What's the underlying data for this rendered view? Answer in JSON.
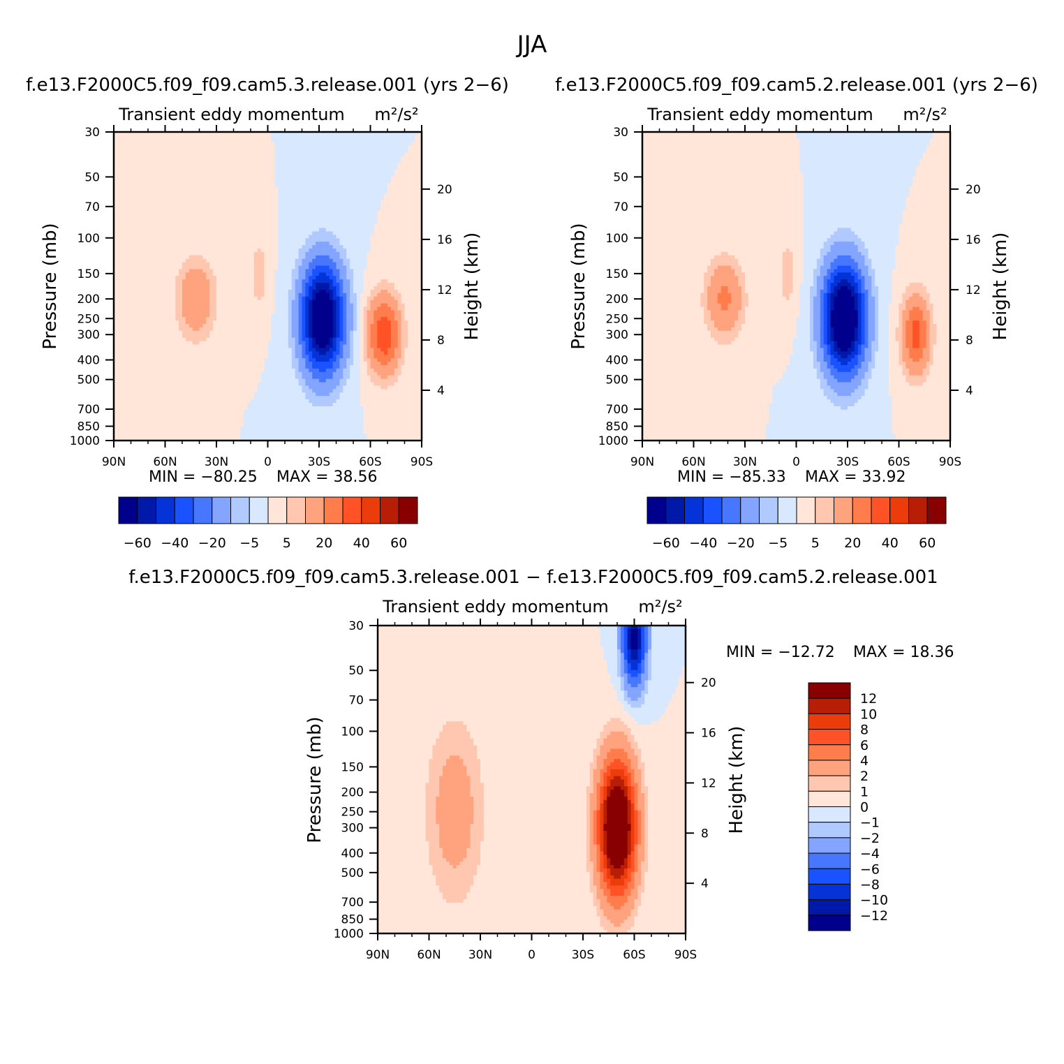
{
  "title": "JJA",
  "panels": [
    {
      "case_title": "f.e13.F2000C5.f09_f09.cam5.3.release.001  (yrs 2−6)",
      "variable": "Transient  eddy  momentum",
      "units": "m²/s²",
      "ylabel": "Pressure  (mb)",
      "y2label": "Height  (km)",
      "min_label": "MIN  =  −80.25",
      "max_label": "MAX  =   38.56"
    },
    {
      "case_title": "f.e13.F2000C5.f09_f09.cam5.2.release.001  (yrs 2−6)",
      "variable": "Transient  eddy  momentum",
      "units": "m²/s²",
      "ylabel": "Pressure  (mb)",
      "y2label": "Height  (km)",
      "min_label": "MIN  =  −85.33",
      "max_label": "MAX  =   33.92"
    },
    {
      "case_title": "f.e13.F2000C5.f09_f09.cam5.3.release.001  −  f.e13.F2000C5.f09_f09.cam5.2.release.001",
      "variable": "Transient  eddy  momentum",
      "units": "m²/s²",
      "ylabel": "Pressure  (mb)",
      "y2label": "Height  (km)",
      "min_label": "MIN  =  −12.72",
      "max_label": "MAX  =   18.36"
    }
  ],
  "colorbar_main": {
    "colors": [
      "#00008c",
      "#0019a8",
      "#0433d8",
      "#1b52ff",
      "#4877ff",
      "#83a5ff",
      "#b0c9ff",
      "#d7e8ff",
      "#ffe6d8",
      "#ffc7b0",
      "#ffa37f",
      "#ff7c4d",
      "#ff5226",
      "#ec3c0b",
      "#b81e05",
      "#880000"
    ],
    "labels": [
      "−60",
      "−40",
      "−20",
      "−5",
      "5",
      "20",
      "40",
      "60"
    ]
  },
  "colorbar_diff": {
    "colors": [
      "#00008c",
      "#0019a8",
      "#0433d8",
      "#1b52ff",
      "#4877ff",
      "#83a5ff",
      "#b0c9ff",
      "#d7e8ff",
      "#ffe6d8",
      "#ffc7b0",
      "#ffa37f",
      "#ff7c4d",
      "#ff5226",
      "#ec3c0b",
      "#b81e05",
      "#880000"
    ],
    "labels": [
      "12",
      "10",
      "8",
      "6",
      "4",
      "2",
      "1",
      "0",
      "−1",
      "−2",
      "−4",
      "−6",
      "−8",
      "−10",
      "−12"
    ]
  },
  "chart_data": [
    {
      "type": "heatmap",
      "title": "Transient  eddy  momentum",
      "subtitle": "f.e13.F2000C5.f09_f09.cam5.3.release.001  (yrs 2−6)",
      "x_ticklabels": [
        "90N",
        "60N",
        "30N",
        "0",
        "30S",
        "60S",
        "90S"
      ],
      "x_values": [
        90,
        60,
        30,
        0,
        -30,
        -60,
        -90
      ],
      "y_ticklabels": [
        "30",
        "50",
        "70",
        "100",
        "150",
        "200",
        "250",
        "300",
        "400",
        "500",
        "700",
        "850",
        "1000"
      ],
      "y_values": [
        30,
        50,
        70,
        100,
        150,
        200,
        250,
        300,
        400,
        500,
        700,
        850,
        1000
      ],
      "y_scale": "log",
      "y2_ticklabels": [
        "20",
        "16",
        "12",
        "8",
        "4"
      ],
      "y2_values": [
        20,
        16,
        12,
        8,
        4
      ],
      "levels": [
        -60,
        -50,
        -40,
        -30,
        -20,
        -10,
        -5,
        0,
        5,
        10,
        20,
        30,
        40,
        50,
        60
      ],
      "min": -80.25,
      "max": 38.56,
      "features": [
        {
          "lat": -32,
          "p": 250,
          "value": -80.25,
          "lat_halfwidth": 9,
          "p_range": [
            150,
            400
          ]
        },
        {
          "lat": -68,
          "p": 300,
          "value": 38.56,
          "lat_halfwidth": 7,
          "p_range": [
            200,
            400
          ]
        },
        {
          "lat": 42,
          "p": 200,
          "value": 20,
          "lat_halfwidth": 8,
          "p_range": [
            150,
            300
          ]
        },
        {
          "lat": 5,
          "p": 150,
          "value": 8,
          "lat_halfwidth": 4,
          "p_range": [
            100,
            200
          ]
        }
      ]
    },
    {
      "type": "heatmap",
      "title": "Transient  eddy  momentum",
      "subtitle": "f.e13.F2000C5.f09_f09.cam5.2.release.001  (yrs 2−6)",
      "x_ticklabels": [
        "90N",
        "60N",
        "30N",
        "0",
        "30S",
        "60S",
        "90S"
      ],
      "x_values": [
        90,
        60,
        30,
        0,
        -30,
        -60,
        -90
      ],
      "y_ticklabels": [
        "30",
        "50",
        "70",
        "100",
        "150",
        "200",
        "250",
        "300",
        "400",
        "500",
        "700",
        "850",
        "1000"
      ],
      "y_values": [
        30,
        50,
        70,
        100,
        150,
        200,
        250,
        300,
        400,
        500,
        700,
        850,
        1000
      ],
      "y_scale": "log",
      "y2_ticklabels": [
        "20",
        "16",
        "12",
        "8",
        "4"
      ],
      "y2_values": [
        20,
        16,
        12,
        8,
        4
      ],
      "levels": [
        -60,
        -50,
        -40,
        -30,
        -20,
        -10,
        -5,
        0,
        5,
        10,
        20,
        30,
        40,
        50,
        60
      ],
      "min": -85.33,
      "max": 33.92,
      "features": [
        {
          "lat": -28,
          "p": 250,
          "value": -85.33,
          "lat_halfwidth": 9,
          "p_range": [
            150,
            400
          ]
        },
        {
          "lat": -70,
          "p": 300,
          "value": 33.92,
          "lat_halfwidth": 6,
          "p_range": [
            200,
            400
          ]
        },
        {
          "lat": 42,
          "p": 200,
          "value": 22,
          "lat_halfwidth": 8,
          "p_range": [
            150,
            300
          ]
        },
        {
          "lat": 5,
          "p": 150,
          "value": 8,
          "lat_halfwidth": 4,
          "p_range": [
            100,
            200
          ]
        }
      ]
    },
    {
      "type": "heatmap",
      "title": "Transient  eddy  momentum",
      "subtitle": "f.e13.F2000C5.f09_f09.cam5.3.release.001  −  f.e13.F2000C5.f09_f09.cam5.2.release.001",
      "x_ticklabels": [
        "90N",
        "60N",
        "30N",
        "0",
        "30S",
        "60S",
        "90S"
      ],
      "x_values": [
        90,
        60,
        30,
        0,
        -30,
        -60,
        -90
      ],
      "y_ticklabels": [
        "30",
        "50",
        "70",
        "100",
        "150",
        "200",
        "250",
        "300",
        "400",
        "500",
        "700",
        "850",
        "1000"
      ],
      "y_values": [
        30,
        50,
        70,
        100,
        150,
        200,
        250,
        300,
        400,
        500,
        700,
        850,
        1000
      ],
      "y_scale": "log",
      "y2_ticklabels": [
        "20",
        "16",
        "12",
        "8",
        "4"
      ],
      "y2_values": [
        20,
        16,
        12,
        8,
        4
      ],
      "levels": [
        -12,
        -10,
        -8,
        -6,
        -4,
        -2,
        -1,
        0,
        1,
        2,
        4,
        6,
        8,
        10,
        12
      ],
      "min": -12.72,
      "max": 18.36,
      "features": [
        {
          "lat": -50,
          "p": 300,
          "value": 18.36,
          "lat_halfwidth": 8,
          "p_range": [
            150,
            500
          ]
        },
        {
          "lat": -60,
          "p": 35,
          "value": -12.72,
          "lat_halfwidth": 5,
          "p_range": [
            30,
            70
          ]
        },
        {
          "lat": 45,
          "p": 250,
          "value": 3,
          "lat_halfwidth": 12,
          "p_range": [
            100,
            500
          ]
        }
      ]
    }
  ]
}
